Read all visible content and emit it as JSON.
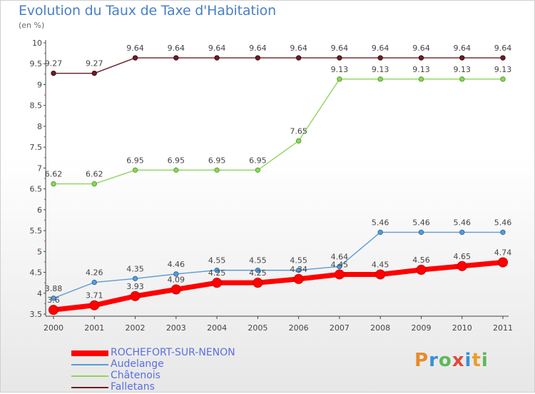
{
  "title": "Evolution du Taux de Taxe d'Habitation",
  "subtitle": "(en %)",
  "logo": {
    "text": "Proxiti",
    "colors": [
      "#e88a2a",
      "#3a8fd8",
      "#5cb85c",
      "#e04a3a",
      "#3a8fd8",
      "#e8a02a",
      "#5cb85c"
    ]
  },
  "chart_data": {
    "type": "line",
    "x": [
      "2000",
      "2001",
      "2002",
      "2003",
      "2004",
      "2005",
      "2006",
      "2007",
      "2008",
      "2009",
      "2010",
      "2011"
    ],
    "ylim": [
      3.5,
      10
    ],
    "yticks": [
      "3.5",
      "4",
      "4.5",
      "5",
      "5.5",
      "6",
      "6.5",
      "7",
      "7.5",
      "8",
      "8.5",
      "9",
      "9.5",
      "10"
    ],
    "grid": false,
    "legend_position": "bottom-left",
    "series": [
      {
        "name": "Falletans",
        "color": "#6b1f24",
        "values": [
          9.27,
          9.27,
          9.64,
          9.64,
          9.64,
          9.64,
          9.64,
          9.64,
          9.64,
          9.64,
          9.64,
          9.64
        ],
        "labels": [
          "9.27",
          "9.27",
          "9.64",
          "9.64",
          "9.64",
          "9.64",
          "9.64",
          "9.64",
          "9.64",
          "9.64",
          "9.64",
          "9.64"
        ]
      },
      {
        "name": "Châtenois",
        "color": "#8fd45f",
        "values": [
          6.62,
          6.62,
          6.95,
          6.95,
          6.95,
          6.95,
          7.65,
          9.13,
          9.13,
          9.13,
          9.13,
          9.13
        ],
        "labels": [
          "6.62",
          "6.62",
          "6.95",
          "6.95",
          "6.95",
          "6.95",
          "7.65",
          "9.13",
          "9.13",
          "9.13",
          "9.13",
          "9.13"
        ]
      },
      {
        "name": "Audelange",
        "color": "#5b9bd5",
        "values": [
          3.88,
          4.26,
          4.35,
          4.46,
          4.55,
          4.55,
          4.55,
          4.64,
          5.46,
          5.46,
          5.46,
          5.46
        ],
        "labels": [
          "3.88",
          "4.26",
          "4.35",
          "4.46",
          "4.55",
          "4.55",
          "4.55",
          "4.64",
          "5.46",
          "5.46",
          "5.46",
          "5.46"
        ]
      },
      {
        "name": "ROCHEFORT-SUR-NENON",
        "color": "#ff0000",
        "values": [
          3.6,
          3.71,
          3.93,
          4.09,
          4.25,
          4.25,
          4.34,
          4.45,
          4.45,
          4.56,
          4.65,
          4.74
        ],
        "labels": [
          "3.6",
          "3.71",
          "3.93",
          "4.09",
          "4.25",
          "4.25",
          "4.34",
          "4.45",
          "4.45",
          "4.56",
          "4.65",
          "4.74"
        ]
      }
    ],
    "legend": [
      "ROCHEFORT-SUR-NENON",
      "Audelange",
      "Châtenois",
      "Falletans"
    ]
  }
}
